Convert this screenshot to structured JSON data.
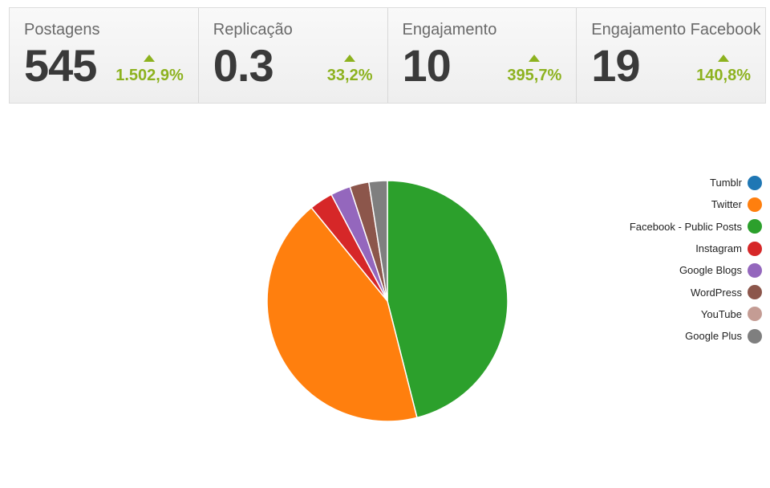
{
  "kpis": [
    {
      "label": "Postagens",
      "value": "545",
      "delta": "1.502,9%"
    },
    {
      "label": "Replicação",
      "value": "0.3",
      "delta": "33,2%"
    },
    {
      "label": "Engajamento",
      "value": "10",
      "delta": "395,7%"
    },
    {
      "label": "Engajamento Facebook",
      "value": "19",
      "delta": "140,8%"
    }
  ],
  "colors": {
    "accent_up": "#8db21f"
  },
  "chart_data": {
    "type": "pie",
    "legend_position": "right",
    "slices": [
      {
        "name": "Tumblr",
        "value": 0,
        "color": "#1f77b4"
      },
      {
        "name": "Twitter",
        "value": 43.5,
        "color": "#ff7f0e"
      },
      {
        "name": "Facebook - Public Posts",
        "value": 46.5,
        "color": "#2ca02c"
      },
      {
        "name": "Instagram",
        "value": 3.2,
        "color": "#d62728"
      },
      {
        "name": "Google Blogs",
        "value": 2.7,
        "color": "#9467bd"
      },
      {
        "name": "WordPress",
        "value": 2.6,
        "color": "#8c564b"
      },
      {
        "name": "YouTube",
        "value": 0,
        "color": "#c49c94"
      },
      {
        "name": "Google Plus",
        "value": 2.5,
        "color": "#7f7f7f"
      }
    ]
  }
}
